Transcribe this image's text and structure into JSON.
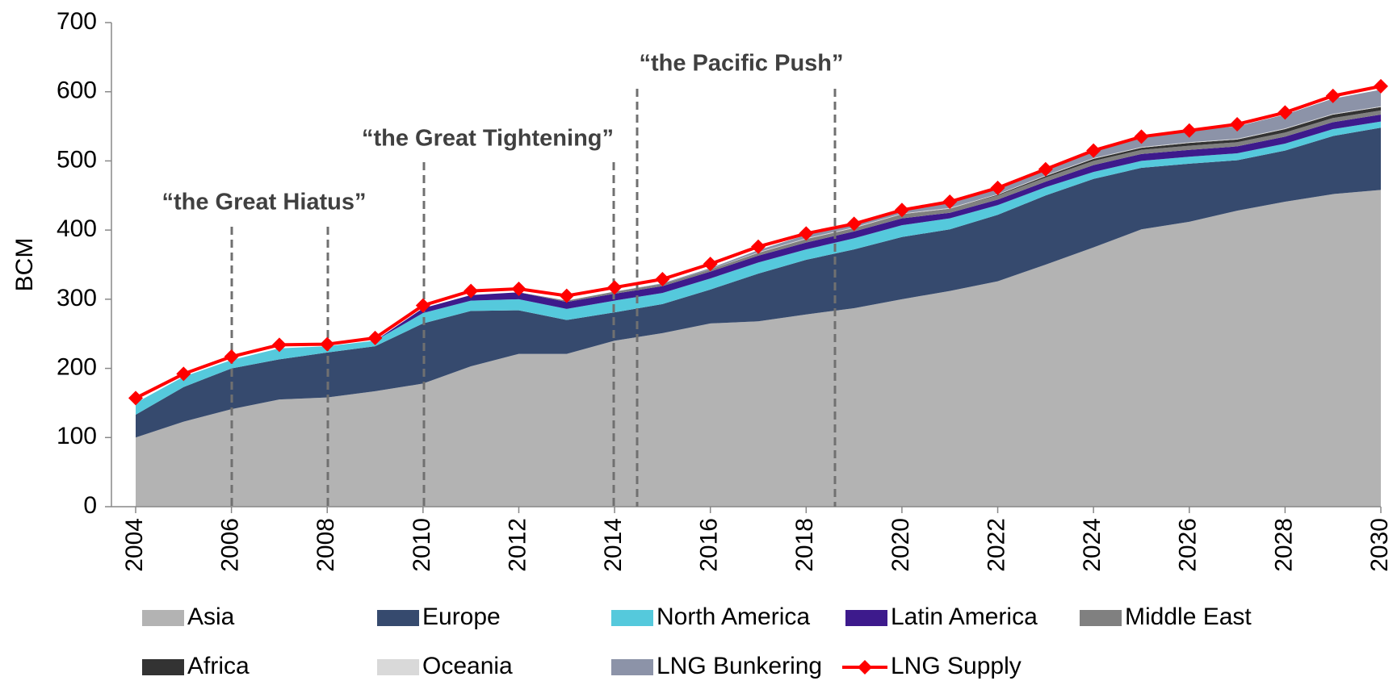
{
  "chart_data": {
    "type": "stacked-area",
    "y_label": "BCM",
    "x": [
      2004,
      2005,
      2006,
      2007,
      2008,
      2009,
      2010,
      2011,
      2012,
      2013,
      2014,
      2015,
      2016,
      2017,
      2018,
      2019,
      2020,
      2021,
      2022,
      2023,
      2024,
      2025,
      2026,
      2027,
      2028,
      2029,
      2030
    ],
    "xlim": [
      2004,
      2030
    ],
    "xticks": [
      2004,
      2006,
      2008,
      2010,
      2012,
      2014,
      2016,
      2018,
      2020,
      2022,
      2024,
      2026,
      2028,
      2030
    ],
    "ylim": [
      0,
      700
    ],
    "yticks": [
      0,
      100,
      200,
      300,
      400,
      500,
      600,
      700
    ],
    "annotations": [
      "“the Great Hiatus”",
      "“the Great Tightening”",
      "“the Pacific Push”"
    ],
    "series": [
      {
        "name": "Asia",
        "color": "#b3b3b3",
        "values": [
          100,
          123,
          141,
          155,
          158,
          167,
          178,
          203,
          221,
          221,
          240,
          251,
          265,
          268,
          278,
          287,
          300,
          312,
          326,
          350,
          375,
          401,
          412,
          428,
          441,
          452,
          458
        ]
      },
      {
        "name": "Europe",
        "color": "#364a6e",
        "values": [
          33,
          50,
          59,
          58,
          65,
          65,
          87,
          80,
          63,
          49,
          41,
          42,
          49,
          69,
          79,
          85,
          90,
          89,
          96,
          100,
          99,
          89,
          84,
          73,
          74,
          84,
          90
        ]
      },
      {
        "name": "North America",
        "color": "#55c9dc",
        "values": [
          17,
          15,
          12,
          16,
          9,
          8,
          15,
          15,
          16,
          16,
          17,
          16,
          16,
          16,
          15,
          16,
          17,
          16,
          14,
          12,
          10,
          10,
          10,
          10,
          10,
          10,
          9
        ]
      },
      {
        "name": "Latin America",
        "color": "#3d1a8c",
        "values": [
          0,
          0,
          0,
          0,
          0,
          0,
          7,
          8,
          10,
          10,
          10,
          10,
          10,
          10,
          10,
          10,
          10,
          8,
          8,
          8,
          10,
          10,
          10,
          10,
          10,
          10,
          10
        ]
      },
      {
        "name": "Middle East",
        "color": "#808080",
        "values": [
          0,
          0,
          0,
          0,
          0,
          0,
          0,
          0,
          0,
          2,
          3,
          3,
          3,
          4,
          5,
          5,
          6,
          6,
          6,
          6,
          6,
          6,
          6,
          6,
          6,
          6,
          6
        ]
      },
      {
        "name": "Africa",
        "color": "#333333",
        "values": [
          0,
          0,
          0,
          0,
          0,
          0,
          0,
          0,
          0,
          0,
          0,
          0,
          0,
          0,
          0,
          0,
          0,
          0,
          1,
          2,
          3,
          3,
          4,
          4,
          5,
          5,
          5
        ]
      },
      {
        "name": "Oceania",
        "color": "#d9d9d9",
        "values": [
          0,
          0,
          0,
          0,
          0,
          0,
          0,
          0,
          0,
          0,
          0,
          0,
          0,
          1,
          1,
          1,
          1,
          1,
          1,
          1,
          1,
          1,
          1,
          1,
          1,
          1,
          1
        ]
      },
      {
        "name": "LNG Bunkering",
        "color": "#8c93a8",
        "values": [
          0,
          0,
          0,
          0,
          0,
          0,
          0,
          0,
          0,
          0,
          0,
          1,
          2,
          3,
          5,
          5,
          6,
          8,
          9,
          10,
          12,
          14,
          17,
          18,
          20,
          22,
          24
        ]
      },
      {
        "name": "LNG Supply",
        "color": "#ff0000",
        "kind": "line",
        "values": [
          157,
          192,
          217,
          234,
          235,
          244,
          291,
          312,
          315,
          305,
          317,
          329,
          351,
          376,
          395,
          409,
          429,
          441,
          461,
          488,
          515,
          535,
          544,
          553,
          570,
          594,
          608
        ]
      }
    ]
  }
}
